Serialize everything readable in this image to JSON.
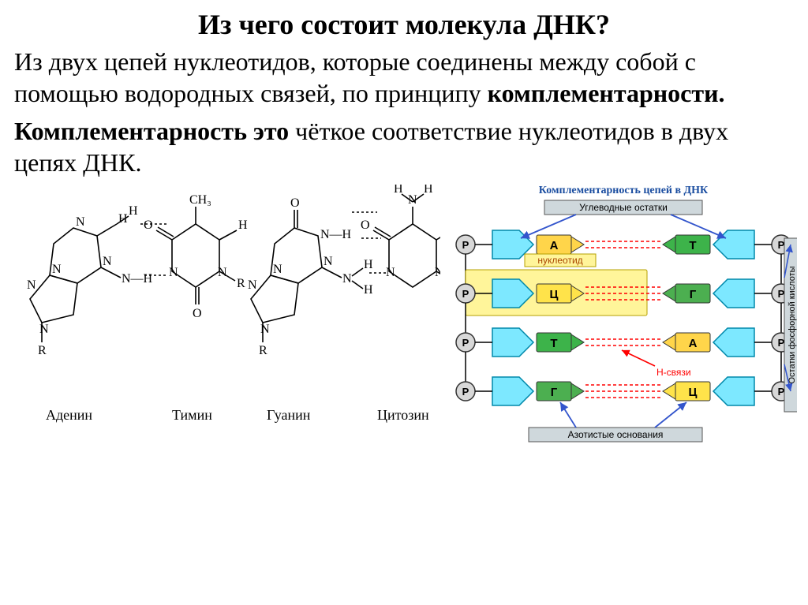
{
  "title": "Из чего состоит молекула ДНК?",
  "paragraph1": {
    "prefix": "Из двух цепей нуклеотидов, которые соединены между собой с помощью водородных связей, по принципу ",
    "bold_suffix": "комплементарности."
  },
  "paragraph2": {
    "bold_prefix": "Комплементарность это",
    "rest": " чёткое соответствие нуклеотидов в двух цепях ДНК."
  },
  "complementarity_diagram": {
    "title": "Комплементарность цепей в ДНК",
    "top_label": "Углеводные остатки",
    "bottom_label": "Азотистые основания",
    "right_label": "Остатки фосфорной кислоты",
    "nucleotide_label": "нуклеотид",
    "hbond_label": "Н-связи",
    "phosphate_symbol": "Р",
    "colors": {
      "sugar": "#7de8ff",
      "phosphate_fill": "#d8d8d8",
      "phosphate_stroke": "#333333",
      "A": "#ffd54a",
      "T": "#3db34a",
      "G": "#4caf50",
      "C": "#ffe34a",
      "highlight": "#fff59a",
      "label_box": "#cfd8dc",
      "hbond": "#ff0000",
      "arrow": "#3355cc",
      "red_arrow": "#ff0000",
      "text_blue": "#1a4da0"
    },
    "pairs": [
      {
        "left": "А",
        "right": "Т",
        "left_color": "#ffd54a",
        "right_color": "#3db34a"
      },
      {
        "left": "Ц",
        "right": "Г",
        "left_color": "#ffe34a",
        "right_color": "#4caf50",
        "highlight": true
      },
      {
        "left": "Т",
        "right": "А",
        "left_color": "#3db34a",
        "right_color": "#ffd54a"
      },
      {
        "left": "Г",
        "right": "Ц",
        "left_color": "#4caf50",
        "right_color": "#ffe34a"
      }
    ]
  },
  "chemical_structures": {
    "labels": [
      "Аденин",
      "Тимин",
      "Гуанин",
      "Цитозин"
    ],
    "colors": {
      "stroke": "#000000",
      "hbond": "#000000"
    },
    "label_fontsize": 16
  }
}
